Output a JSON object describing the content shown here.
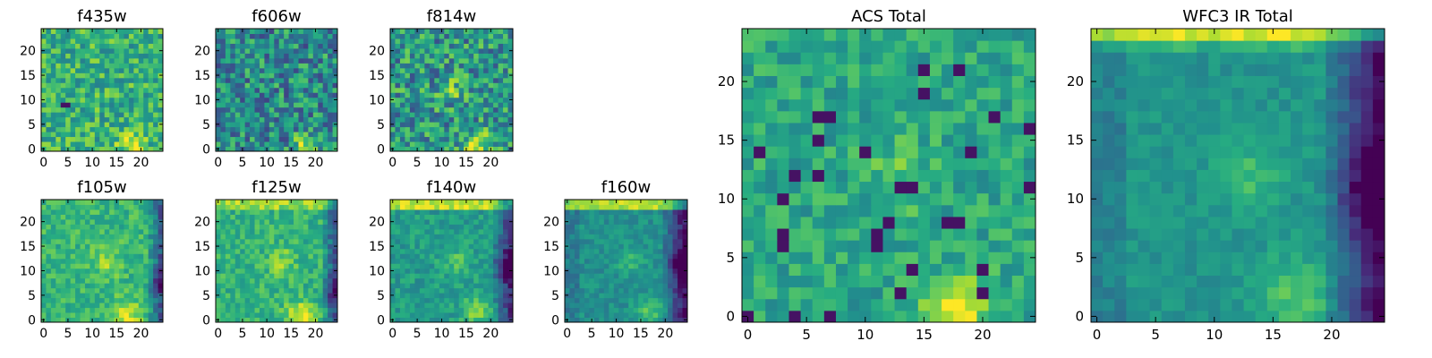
{
  "figure": {
    "colormap": "viridis",
    "panels": [
      {
        "title": "f435w",
        "size": "small",
        "grid": 25,
        "pattern": "optical_a",
        "seed": 1,
        "xticks": [
          "0",
          "5",
          "10",
          "15",
          "20"
        ],
        "yticks": [
          "0",
          "5",
          "10",
          "15",
          "20"
        ]
      },
      {
        "title": "f606w",
        "size": "small",
        "grid": 25,
        "pattern": "optical_b",
        "seed": 2,
        "xticks": [
          "0",
          "5",
          "10",
          "15",
          "20"
        ],
        "yticks": [
          "0",
          "5",
          "10",
          "15",
          "20"
        ]
      },
      {
        "title": "f814w",
        "size": "small",
        "grid": 25,
        "pattern": "optical_c",
        "seed": 3,
        "xticks": [
          "0",
          "5",
          "10",
          "15",
          "20"
        ],
        "yticks": [
          "0",
          "5",
          "10",
          "15",
          "20"
        ]
      },
      {
        "title": "f105w",
        "size": "small",
        "grid": 25,
        "pattern": "ir_a",
        "seed": 4,
        "xticks": [
          "0",
          "5",
          "10",
          "15",
          "20"
        ],
        "yticks": [
          "0",
          "5",
          "10",
          "15",
          "20"
        ]
      },
      {
        "title": "f125w",
        "size": "small",
        "grid": 25,
        "pattern": "ir_b",
        "seed": 5,
        "xticks": [
          "0",
          "5",
          "10",
          "15",
          "20"
        ],
        "yticks": [
          "0",
          "5",
          "10",
          "15",
          "20"
        ]
      },
      {
        "title": "f140w",
        "size": "small",
        "grid": 25,
        "pattern": "ir_c",
        "seed": 6,
        "xticks": [
          "0",
          "5",
          "10",
          "15",
          "20"
        ],
        "yticks": [
          "0",
          "5",
          "10",
          "15",
          "20"
        ]
      },
      {
        "title": "f160w",
        "size": "small",
        "grid": 25,
        "pattern": "ir_d",
        "seed": 7,
        "xticks": [
          "0",
          "5",
          "10",
          "15",
          "20"
        ],
        "yticks": [
          "0",
          "5",
          "10",
          "15",
          "20"
        ]
      },
      {
        "title": "ACS Total",
        "size": "big",
        "grid": 25,
        "pattern": "acs",
        "seed": 8,
        "xticks": [
          "0",
          "5",
          "10",
          "15",
          "20"
        ],
        "yticks": [
          "0",
          "5",
          "10",
          "15",
          "20"
        ]
      },
      {
        "title": "WFC3 IR Total",
        "size": "big",
        "grid": 25,
        "pattern": "wfc3",
        "seed": 9,
        "xticks": [
          "0",
          "5",
          "10",
          "15",
          "20"
        ],
        "yticks": [
          "0",
          "5",
          "10",
          "15",
          "20"
        ]
      }
    ]
  },
  "chart_data": [
    {
      "type": "heatmap",
      "title": "f435w",
      "xlim": [
        0,
        24
      ],
      "ylim": [
        0,
        24
      ],
      "grid": false,
      "colormap": "viridis",
      "note_values": "25x25 pixel image, mostly mid-high values with a bright patch near x=17-19, y=0-2"
    },
    {
      "type": "heatmap",
      "title": "f606w",
      "xlim": [
        0,
        24
      ],
      "ylim": [
        0,
        24
      ],
      "grid": false,
      "colormap": "viridis"
    },
    {
      "type": "heatmap",
      "title": "f814w",
      "xlim": [
        0,
        24
      ],
      "ylim": [
        0,
        24
      ],
      "grid": false,
      "colormap": "viridis"
    },
    {
      "type": "heatmap",
      "title": "f105w",
      "xlim": [
        0,
        24
      ],
      "ylim": [
        0,
        24
      ],
      "grid": false,
      "colormap": "viridis"
    },
    {
      "type": "heatmap",
      "title": "f125w",
      "xlim": [
        0,
        24
      ],
      "ylim": [
        0,
        24
      ],
      "grid": false,
      "colormap": "viridis"
    },
    {
      "type": "heatmap",
      "title": "f140w",
      "xlim": [
        0,
        24
      ],
      "ylim": [
        0,
        24
      ],
      "grid": false,
      "colormap": "viridis"
    },
    {
      "type": "heatmap",
      "title": "f160w",
      "xlim": [
        0,
        24
      ],
      "ylim": [
        0,
        24
      ],
      "grid": false,
      "colormap": "viridis"
    },
    {
      "type": "heatmap",
      "title": "ACS Total",
      "xlim": [
        0,
        24
      ],
      "ylim": [
        0,
        24
      ],
      "grid": false,
      "colormap": "viridis"
    },
    {
      "type": "heatmap",
      "title": "WFC3 IR Total",
      "xlim": [
        0,
        24
      ],
      "ylim": [
        0,
        24
      ],
      "grid": false,
      "colormap": "viridis"
    }
  ]
}
